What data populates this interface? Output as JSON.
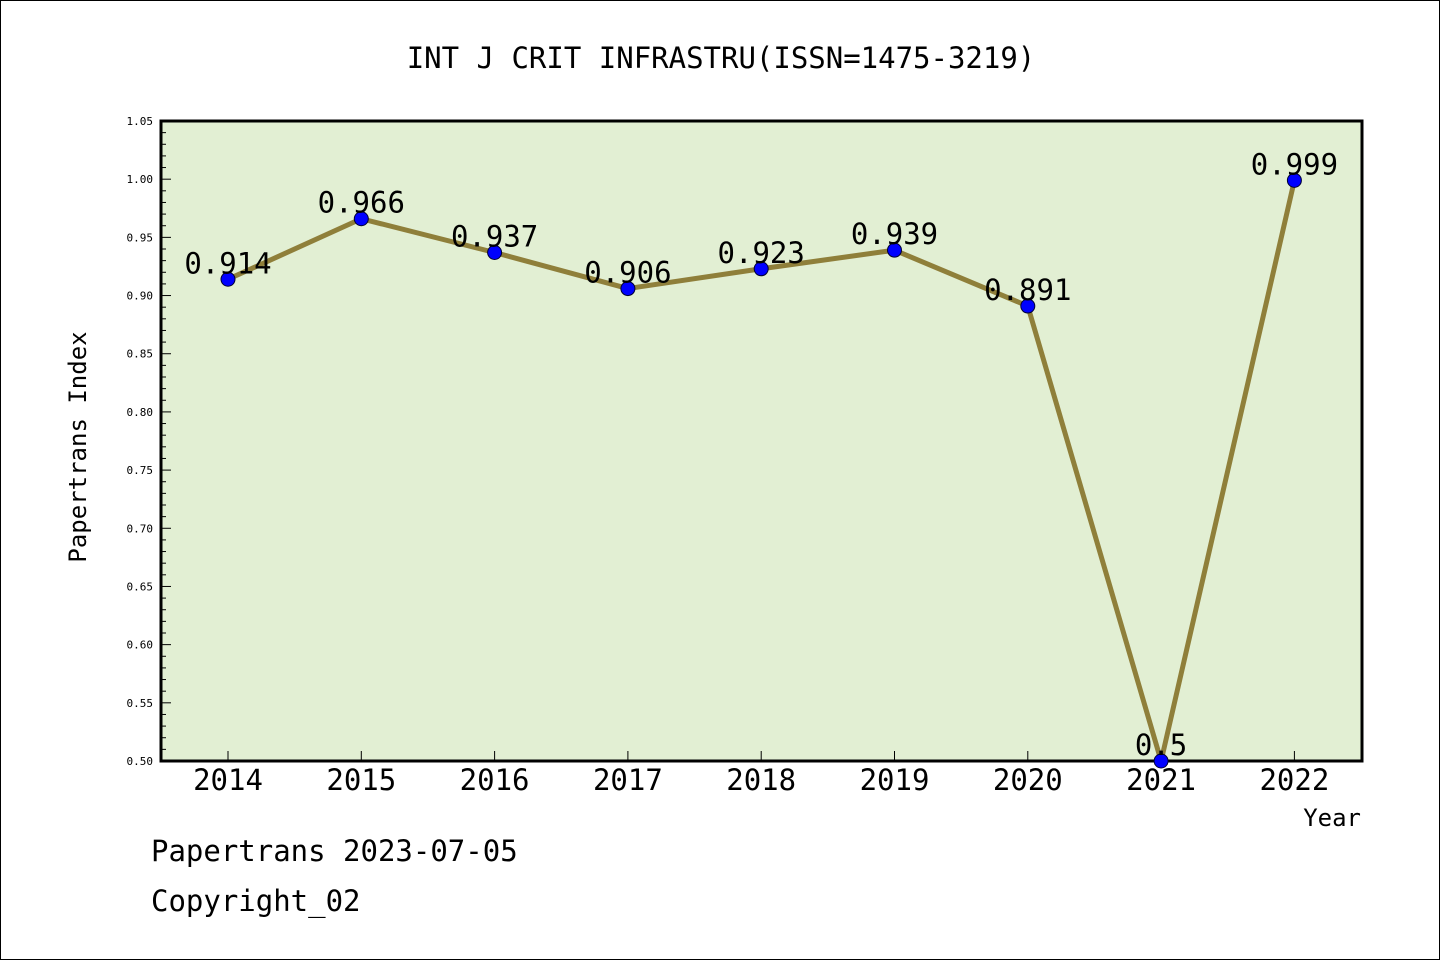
{
  "footer": {
    "line1": "Papertrans 2023-07-05",
    "line2": "Copyright_02"
  },
  "chart_data": {
    "type": "line",
    "title": "INT J CRIT INFRASTRU(ISSN=1475-3219)",
    "xlabel": "Year",
    "ylabel": "Papertrans Index",
    "categories": [
      "2014",
      "2015",
      "2016",
      "2017",
      "2018",
      "2019",
      "2020",
      "2021",
      "2022"
    ],
    "series": [
      {
        "values": [
          0.914,
          0.966,
          0.937,
          0.906,
          0.923,
          0.939,
          0.891,
          0.5,
          0.999
        ],
        "labels": [
          "0.914",
          "0.966",
          "0.937",
          "0.906",
          "0.923",
          "0.939",
          "0.891",
          "0.5",
          "0.999"
        ]
      }
    ],
    "ylim": [
      0.5,
      1.05
    ],
    "yticks": [
      "0.50",
      "0.55",
      "0.60",
      "0.65",
      "0.70",
      "0.75",
      "0.80",
      "0.85",
      "0.90",
      "0.95",
      "1.00",
      "1.05"
    ],
    "grid": false,
    "colors": {
      "line": "#8f7f3a",
      "marker": "#0000ff",
      "plot_background": "#e2efd3"
    }
  }
}
